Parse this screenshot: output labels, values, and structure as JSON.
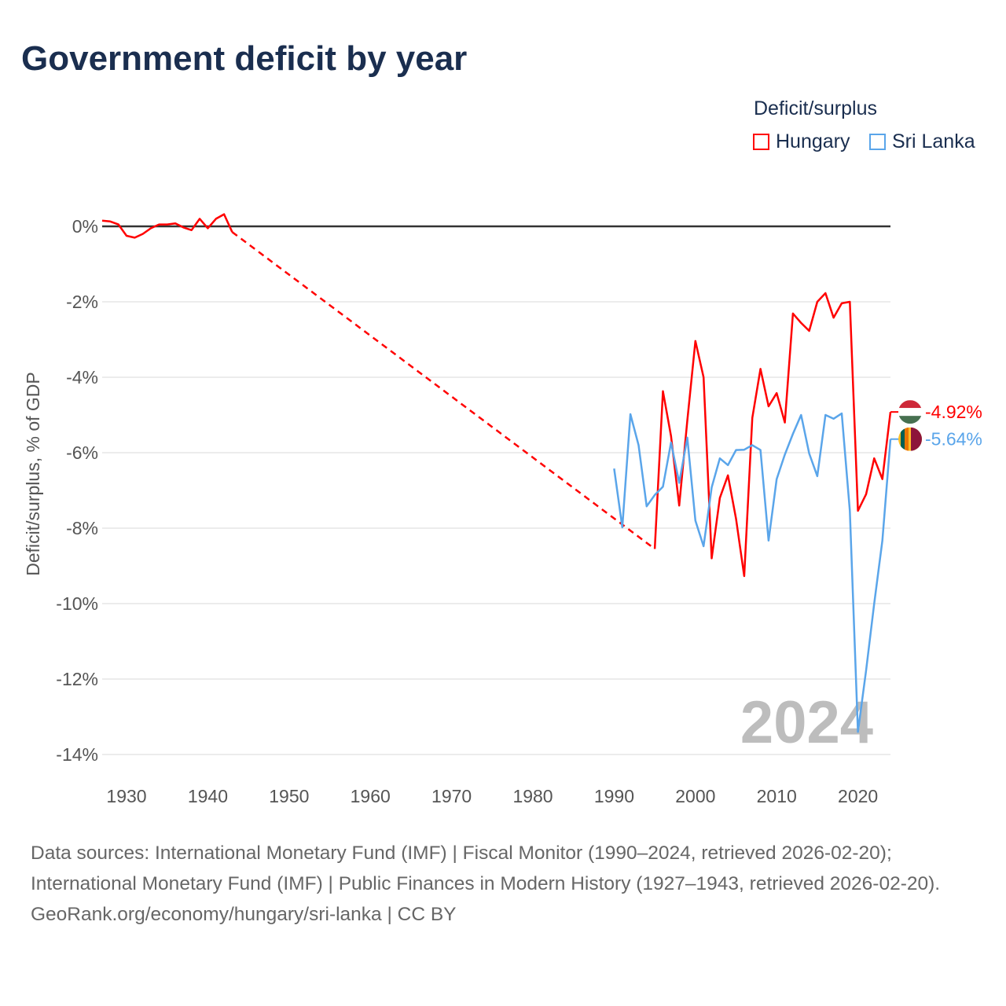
{
  "title": "Government deficit by year",
  "legend": {
    "title": "Deficit/surplus",
    "items": [
      {
        "label": "Hungary",
        "color": "#ff0000"
      },
      {
        "label": "Sri Lanka",
        "color": "#5aa5ea"
      }
    ]
  },
  "footer": {
    "sources": "Data sources: International Monetary Fund (IMF) | Fiscal Monitor (1990–2024, retrieved 2026-02-20); International Monetary Fund (IMF) | Public Finances in Modern History (1927–1943, retrieved 2026-02-20).",
    "credit": "GeoRank.org/economy/hungary/sri-lanka | CC BY"
  },
  "chart_data": {
    "type": "line",
    "title": "Government deficit by year",
    "xlabel": "",
    "ylabel": "Deficit/surplus, % of GDP",
    "xlim": [
      1927,
      2024
    ],
    "ylim": [
      -14.5,
      0.5
    ],
    "xticks": [
      1930,
      1940,
      1950,
      1960,
      1970,
      1980,
      1990,
      2000,
      2010,
      2020
    ],
    "yticks": [
      0,
      -2,
      -4,
      -6,
      -8,
      -10,
      -12,
      -14
    ],
    "ytick_labels": [
      "0%",
      "-2%",
      "-4%",
      "-6%",
      "-8%",
      "-10%",
      "-12%",
      "-14%"
    ],
    "year_label": "2024",
    "legend_position": "top-right",
    "series": [
      {
        "name": "Hungary",
        "color": "#ff0000",
        "end_label": "-4.92%",
        "segments": [
          {
            "x": [
              1927,
              1928,
              1929,
              1930,
              1931,
              1932,
              1933,
              1934,
              1935,
              1936,
              1937,
              1938,
              1939,
              1940,
              1941,
              1942,
              1943
            ],
            "y": [
              0.15,
              0.13,
              0.05,
              -0.25,
              -0.3,
              -0.2,
              -0.05,
              0.05,
              0.05,
              0.08,
              -0.03,
              -0.1,
              0.2,
              -0.05,
              0.2,
              0.32,
              -0.15
            ]
          },
          {
            "dashed": true,
            "x": [
              1943,
              1995
            ],
            "y": [
              -0.15,
              -8.55
            ]
          },
          {
            "x": [
              1995,
              1996,
              1997,
              1998,
              1999,
              2000,
              2001,
              2002,
              2003,
              2004,
              2005,
              2006,
              2007,
              2008,
              2009,
              2010,
              2011,
              2012,
              2013,
              2014,
              2015,
              2016,
              2017,
              2018,
              2019,
              2020,
              2021,
              2022,
              2023,
              2024
            ],
            "y": [
              -8.55,
              -4.37,
              -5.56,
              -7.4,
              -5.15,
              -3.04,
              -4.0,
              -8.8,
              -7.2,
              -6.6,
              -7.75,
              -9.27,
              -5.08,
              -3.78,
              -4.77,
              -4.42,
              -5.2,
              -2.31,
              -2.56,
              -2.77,
              -2.0,
              -1.77,
              -2.42,
              -2.04,
              -2.0,
              -7.54,
              -7.1,
              -6.15,
              -6.7,
              -4.92
            ]
          }
        ]
      },
      {
        "name": "Sri Lanka",
        "color": "#5aa5ea",
        "end_label": "-5.64%",
        "segments": [
          {
            "x": [
              1990,
              1991,
              1992,
              1993,
              1994,
              1995,
              1996,
              1997,
              1998,
              1999,
              2000,
              2001,
              2002,
              2003,
              2004,
              2005,
              2006,
              2007,
              2008,
              2009,
              2010,
              2011,
              2012,
              2013,
              2014,
              2015,
              2016,
              2017,
              2018,
              2019,
              2020,
              2021,
              2022,
              2023,
              2024
            ],
            "y": [
              -6.42,
              -7.98,
              -4.98,
              -5.8,
              -7.42,
              -7.12,
              -6.9,
              -5.73,
              -6.8,
              -5.6,
              -7.8,
              -8.48,
              -6.92,
              -6.15,
              -6.33,
              -5.93,
              -5.92,
              -5.8,
              -5.93,
              -8.33,
              -6.7,
              -6.05,
              -5.5,
              -5.0,
              -6.02,
              -6.62,
              -5.0,
              -5.1,
              -4.96,
              -7.54,
              -13.4,
              -11.77,
              -10.0,
              -8.33,
              -5.64
            ]
          }
        ]
      }
    ]
  }
}
